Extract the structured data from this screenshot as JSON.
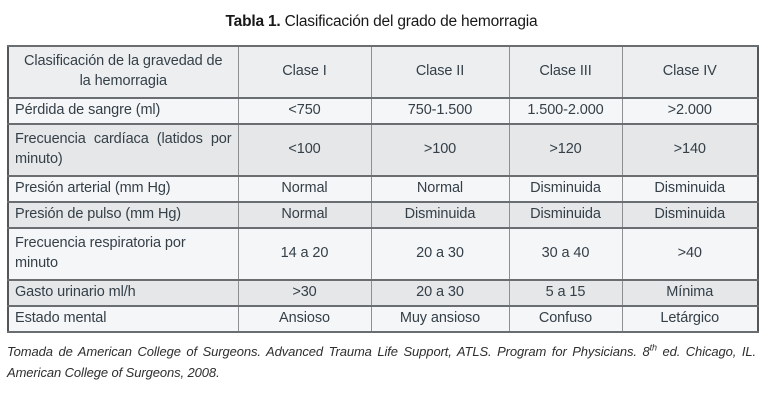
{
  "title": {
    "label": "Tabla 1.",
    "text": "Clasificación del grado de hemorragia"
  },
  "table": {
    "header": [
      "Clasificación de la gravedad de la hemorragia",
      "Clase I",
      "Clase II",
      "Clase III",
      "Clase IV"
    ],
    "rows": [
      {
        "label": "Pérdida de sangre (ml)",
        "values": [
          "<750",
          "750-1.500",
          "1.500-2.000",
          ">2.000"
        ]
      },
      {
        "label": "Frecuencia cardíaca (latidos por minuto)",
        "values": [
          "<100",
          ">100",
          ">120",
          ">140"
        ]
      },
      {
        "label": "Presión arterial (mm Hg)",
        "values": [
          "Normal",
          "Normal",
          "Disminuida",
          "Disminuida"
        ]
      },
      {
        "label": "Presión de pulso (mm Hg)",
        "values": [
          "Normal",
          "Disminuida",
          "Disminuida",
          "Disminuida"
        ]
      },
      {
        "label": "Frecuencia respiratoria por minuto",
        "values": [
          "14 a 20",
          "20 a 30",
          "30 a 40",
          ">40"
        ]
      },
      {
        "label": "Gasto urinario ml/h",
        "values": [
          ">30",
          "20 a 30",
          "5 a 15",
          "Mínima"
        ]
      },
      {
        "label": "Estado mental",
        "values": [
          "Ansioso",
          "Muy ansioso",
          "Confuso",
          "Letárgico"
        ]
      }
    ]
  },
  "footer": {
    "text_before_sup": "Tomada de American College of Surgeons. Advanced Trauma Life Support, ATLS. Program for Physicians. 8",
    "sup": "th",
    "text_after_sup": " ed. Chicago, IL. American College of Surgeons, 2008."
  },
  "colors": {
    "text_dark": "#343f48",
    "title_black": "#181818",
    "header_bg": "#eceef0",
    "row_gray": "#e5e7e8",
    "row_light": "#f5f6f7",
    "border_outer": "#54575a",
    "border_horiz": "#6a6e70",
    "border_vert": "#8d9092",
    "footer_text": "#2e2e2e",
    "page_bg": "#ffffff"
  }
}
